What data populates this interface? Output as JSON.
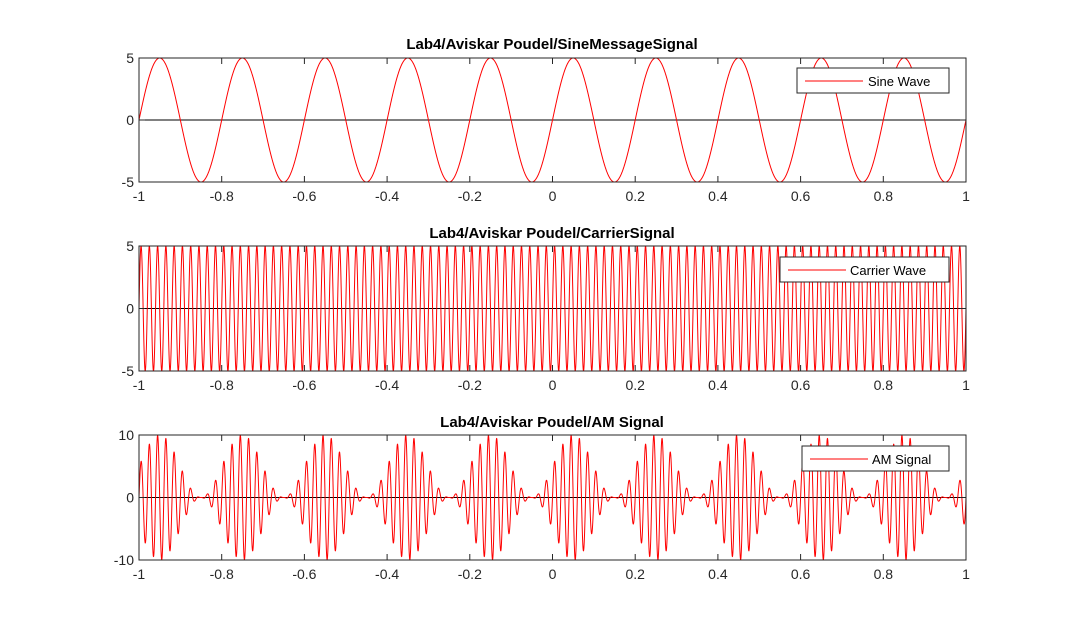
{
  "chart_data": [
    {
      "type": "line",
      "title": "Lab4/Aviskar Poudel/SineMessageSignal",
      "xlabel": "",
      "ylabel": "",
      "xlim": [
        -1,
        1
      ],
      "ylim": [
        -5,
        5
      ],
      "x_ticks": [
        "-1",
        "-0.8",
        "-0.6",
        "-0.4",
        "-0.2",
        "0",
        "0.2",
        "0.4",
        "0.6",
        "0.8",
        "1"
      ],
      "y_ticks": [
        "-5",
        "0",
        "5"
      ],
      "legend": {
        "position": "top-right",
        "entries": [
          "Sine Wave"
        ]
      },
      "grid": false,
      "series": [
        {
          "name": "Sine Wave",
          "color": "#ff0000",
          "function": "5*sin(2*pi*5*t)",
          "amplitude": 5,
          "frequency_hz": 5
        }
      ],
      "zero_line": {
        "color": "#000000",
        "y": 0
      }
    },
    {
      "type": "line",
      "title": "Lab4/Aviskar Poudel/CarrierSignal",
      "xlabel": "",
      "ylabel": "",
      "xlim": [
        -1,
        1
      ],
      "ylim": [
        -5,
        5
      ],
      "x_ticks": [
        "-1",
        "-0.8",
        "-0.6",
        "-0.4",
        "-0.2",
        "0",
        "0.2",
        "0.4",
        "0.6",
        "0.8",
        "1"
      ],
      "y_ticks": [
        "-5",
        "0",
        "5"
      ],
      "legend": {
        "position": "top-right",
        "entries": [
          "Carrier Wave"
        ]
      },
      "grid": false,
      "series": [
        {
          "name": "Carrier Wave",
          "color": "#ff0000",
          "function": "5*sin(2*pi*50*t)",
          "amplitude": 5,
          "frequency_hz": 50
        }
      ],
      "zero_line": {
        "color": "#000000",
        "y": 0
      }
    },
    {
      "type": "line",
      "title": "Lab4/Aviskar Poudel/AM Signal",
      "xlabel": "",
      "ylabel": "",
      "xlim": [
        -1,
        1
      ],
      "ylim": [
        -10,
        10
      ],
      "x_ticks": [
        "-1",
        "-0.8",
        "-0.6",
        "-0.4",
        "-0.2",
        "0",
        "0.2",
        "0.4",
        "0.6",
        "0.8",
        "1"
      ],
      "y_ticks": [
        "-10",
        "0",
        "10"
      ],
      "legend": {
        "position": "top-right",
        "entries": [
          "AM Signal"
        ]
      },
      "grid": false,
      "series": [
        {
          "name": "AM Signal",
          "color": "#ff0000",
          "function": "(5+5*sin(2*pi*5*t))*sin(2*pi*50*t)",
          "amplitude": 10,
          "frequency_hz": 50
        }
      ],
      "zero_line": {
        "color": "#000000",
        "y": 0
      }
    }
  ]
}
